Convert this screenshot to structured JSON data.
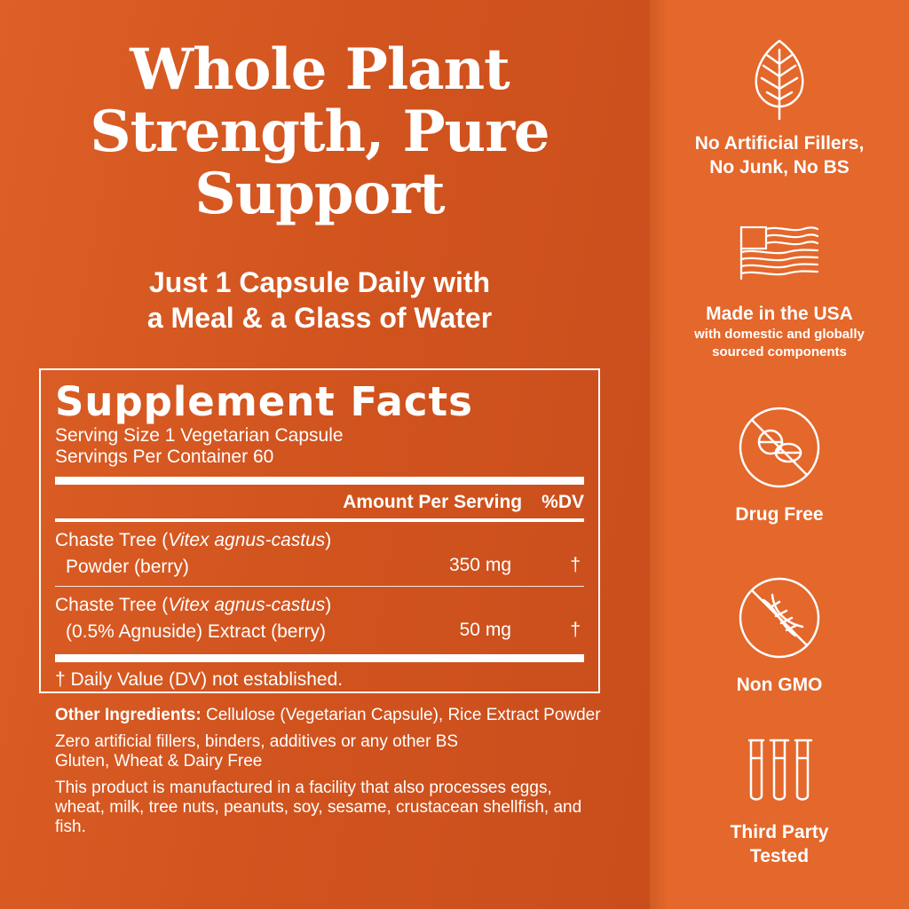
{
  "headline": {
    "line1": "Whole Plant",
    "line2": "Strength, Pure",
    "line3": "Support"
  },
  "subhead": {
    "line1": "Just 1 Capsule Daily with",
    "line2": "a Meal & a Glass of Water"
  },
  "facts": {
    "title": "Supplement Facts",
    "serving_size": "Serving Size 1 Vegetarian Capsule",
    "servings_per_container": "Servings Per Container 60",
    "header_amount": "Amount Per Serving",
    "header_dv": "%DV",
    "ingredients": [
      {
        "name_prefix": "Chaste Tree (",
        "latin": "Vitex agnus-castus",
        "name_suffix": ")",
        "line2": "Powder (berry)",
        "amount": "350 mg",
        "dv": "†"
      },
      {
        "name_prefix": "Chaste Tree (",
        "latin": "Vitex agnus-castus",
        "name_suffix": ")",
        "line2": "(0.5% Agnuside) Extract (berry)",
        "amount": "50 mg",
        "dv": "†"
      }
    ],
    "footnote": "† Daily Value (DV) not established."
  },
  "notes": {
    "other_label": "Other Ingredients:",
    "other_text": " Cellulose (Vegetarian Capsule), Rice Extract Powder",
    "free_line1": "Zero artificial fillers, binders, additives or any other BS",
    "free_line2": "Gluten, Wheat & Dairy Free",
    "allergen": "This product is manufactured in a facility that also processes eggs, wheat, milk, tree nuts, peanuts, soy, sesame, crustacean shellfish, and fish."
  },
  "features": [
    {
      "icon": "leaf-icon",
      "line1": "No Artificial Fillers,",
      "line2": "No Junk, No BS"
    },
    {
      "icon": "usa-flag-icon",
      "line1": "Made in the USA",
      "sub1": "with domestic and globally",
      "sub2": "sourced components"
    },
    {
      "icon": "no-pills-icon",
      "line1": "Drug Free"
    },
    {
      "icon": "no-dna-icon",
      "line1": "Non GMO"
    },
    {
      "icon": "test-tubes-icon",
      "line1": "Third Party",
      "line2": "Tested"
    }
  ],
  "colors": {
    "left_panel": "#d2541f",
    "right_panel": "#e4672b",
    "text": "#ffffff"
  }
}
